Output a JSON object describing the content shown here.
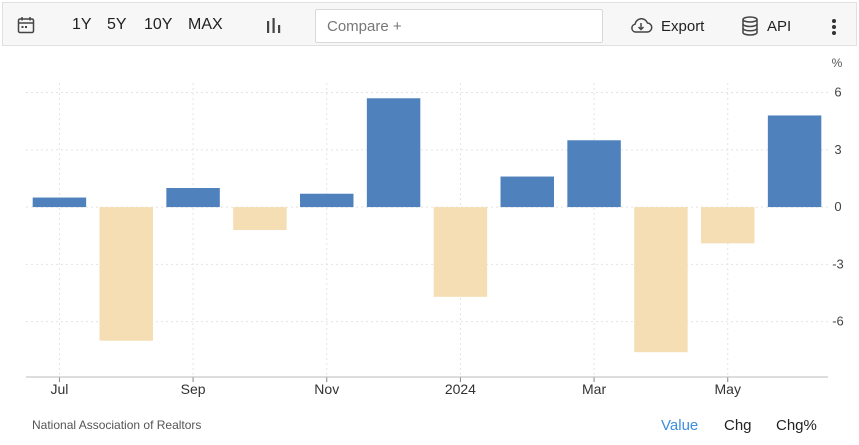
{
  "toolbar": {
    "ranges": [
      "1Y",
      "5Y",
      "10Y",
      "MAX"
    ],
    "compare_placeholder": "Compare +",
    "export_label": "Export",
    "api_label": "API"
  },
  "colors": {
    "positive": "#4f81bd",
    "negative": "#f5deb3",
    "active_mode": "#3b8ede"
  },
  "chart_data": {
    "type": "bar",
    "unit_label": "%",
    "ylim": [
      -8.9,
      6.5
    ],
    "y_ticks": [
      6,
      3,
      0,
      -3,
      -6
    ],
    "grid": true,
    "x_tick_labels": [
      {
        "label": "Jul",
        "month_index": 0
      },
      {
        "label": "Sep",
        "month_index": 2
      },
      {
        "label": "Nov",
        "month_index": 4
      },
      {
        "label": "2024",
        "month_index": 6
      },
      {
        "label": "Mar",
        "month_index": 8
      },
      {
        "label": "May",
        "month_index": 10
      }
    ],
    "categories": [
      "Jul 2023",
      "Aug 2023",
      "Sep 2023",
      "Oct 2023",
      "Nov 2023",
      "Dec 2023",
      "Jan 2024",
      "Feb 2024",
      "Mar 2024",
      "Apr 2024",
      "May 2024",
      "Jun 2024"
    ],
    "values": [
      0.5,
      -7.0,
      1.0,
      -1.2,
      0.7,
      5.7,
      -4.7,
      1.6,
      3.5,
      -7.6,
      -1.9,
      4.8
    ]
  },
  "footer": {
    "source": "National Association of Realtors",
    "modes": [
      "Value",
      "Chg",
      "Chg%"
    ],
    "active_mode": "Value"
  }
}
